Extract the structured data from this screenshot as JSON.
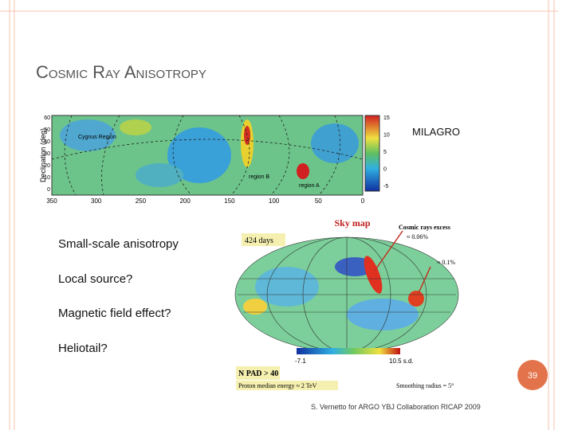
{
  "header": {
    "title": "Cosmic Ray Anisotropy"
  },
  "milagro": {
    "label": "MILAGRO",
    "y_axis_label": "Declination (deg)",
    "x_ticks": [
      "350",
      "300",
      "250",
      "200",
      "150",
      "100",
      "50",
      "0"
    ],
    "y_ticks": [
      "60",
      "50",
      "40",
      "30",
      "20",
      "10",
      "0"
    ],
    "colorbar_ticks": [
      "15",
      "10",
      "5",
      "0",
      "-5"
    ],
    "regions": [
      "Cygnus Region",
      "region B",
      "region A"
    ]
  },
  "bullets": [
    "Small-scale anisotropy",
    "Local source?",
    "Magnetic field effect?",
    "Heliotail?"
  ],
  "argo": {
    "title": "Sky map",
    "days": "424 days",
    "excess_label": "Cosmic rays excess",
    "excess_a": "≈ 0.06%",
    "excess_b": "≈ 0.1%",
    "scale_min": "-7.1",
    "scale_max": "10.5 s.d.",
    "npad": "N PAD > 40",
    "energy": "Proton median energy ≈ 2 TeV",
    "smoothing": "Smoothing radius = 5°",
    "credit": "S. Vernetto for ARGO YBJ Collaboration RICAP 2009"
  },
  "slide_number": "39"
}
